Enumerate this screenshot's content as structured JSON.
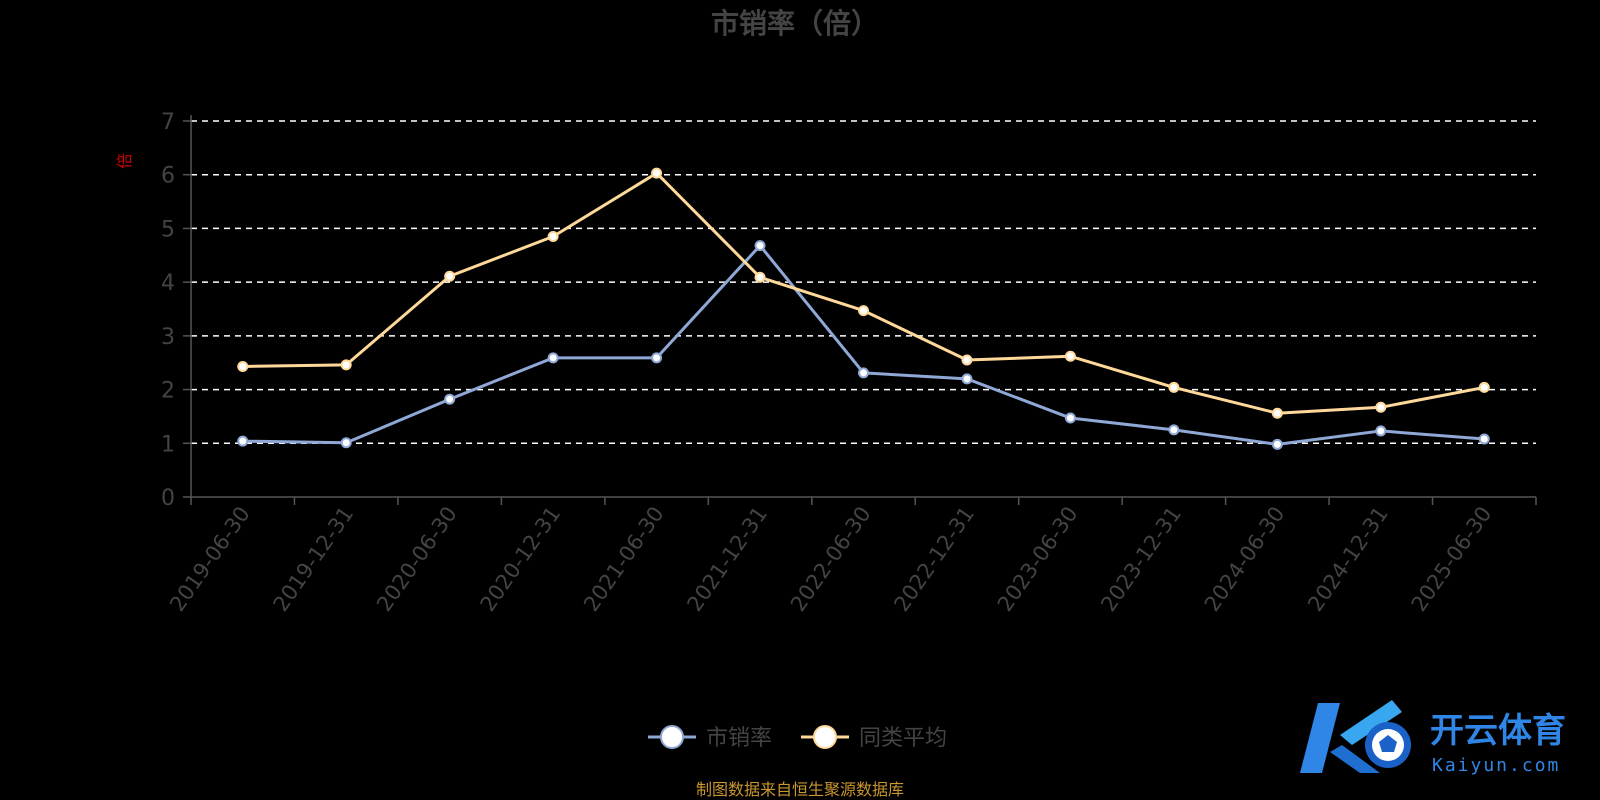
{
  "chart_data": {
    "type": "line",
    "title": "市销率（倍）",
    "ylabel": "倍",
    "xlabel": "",
    "ylim": [
      0,
      7
    ],
    "yticks": [
      0,
      1,
      2,
      3,
      4,
      5,
      6,
      7
    ],
    "grid": true,
    "legend_position": "bottom-center",
    "categories": [
      "2019-06-30",
      "2019-12-31",
      "2020-06-30",
      "2020-12-31",
      "2021-06-30",
      "2021-12-31",
      "2022-06-30",
      "2022-12-31",
      "2023-06-30",
      "2023-12-31",
      "2024-06-30",
      "2024-12-31",
      "2025-06-30"
    ],
    "series": [
      {
        "name": "市销率",
        "color": "#8fa8d6",
        "values": [
          1.04,
          1.01,
          1.82,
          2.59,
          2.59,
          4.68,
          2.31,
          2.2,
          1.47,
          1.25,
          0.98,
          1.23,
          1.08
        ]
      },
      {
        "name": "同类平均",
        "color": "#ffd99a",
        "values": [
          2.43,
          2.46,
          4.11,
          4.85,
          6.03,
          4.09,
          3.47,
          2.55,
          2.62,
          2.04,
          1.56,
          1.67,
          2.04
        ]
      }
    ],
    "source": "制图数据来自恒生聚源数据库"
  },
  "watermark": {
    "chinese": "开云体育",
    "english": "Kaiyun.com",
    "color": "#2f86e6"
  }
}
